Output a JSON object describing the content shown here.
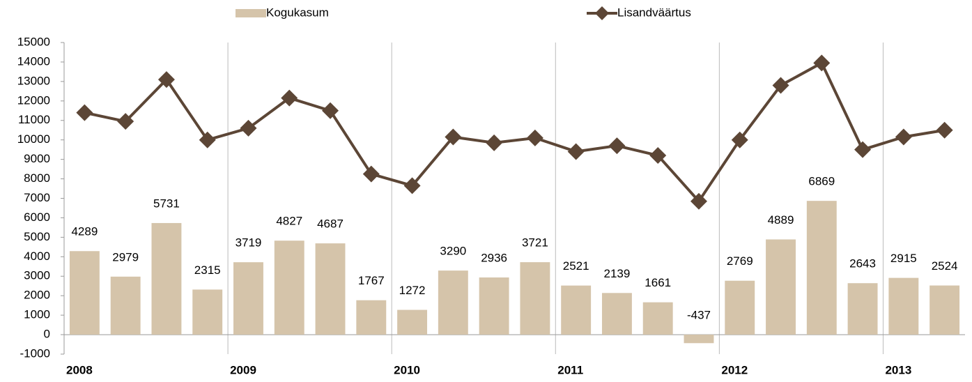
{
  "chart_data": {
    "type": "combo",
    "categories": [
      "2008",
      null,
      null,
      null,
      "2009",
      null,
      null,
      null,
      "2010",
      null,
      null,
      null,
      "2011",
      null,
      null,
      null,
      "2012",
      null,
      null,
      null,
      "2013",
      null
    ],
    "series": [
      {
        "name": "Kogukasum",
        "type": "bar",
        "color": "#d5c4aa",
        "values": [
          4289,
          2979,
          5731,
          2315,
          3719,
          4827,
          4687,
          1767,
          1272,
          3290,
          2936,
          3721,
          2521,
          2139,
          1661,
          -437,
          2769,
          4889,
          6869,
          2643,
          2915,
          2524
        ]
      },
      {
        "name": "Lisandväärtus",
        "type": "line",
        "color": "#5c4636",
        "values": [
          11400,
          10950,
          13100,
          10000,
          10600,
          12150,
          11500,
          8250,
          7650,
          10150,
          9850,
          10100,
          9400,
          9700,
          9200,
          6850,
          10000,
          12800,
          13950,
          9500,
          10150,
          10500
        ]
      }
    ],
    "ylim": [
      -1000,
      15000
    ],
    "yticks": [
      -1000,
      0,
      1000,
      2000,
      3000,
      4000,
      5000,
      6000,
      7000,
      8000,
      9000,
      10000,
      11000,
      12000,
      13000,
      14000,
      15000
    ]
  }
}
